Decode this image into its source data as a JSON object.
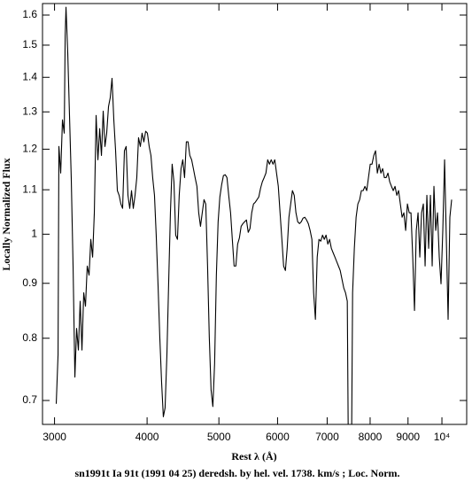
{
  "chart_data": {
    "type": "line",
    "x_label": "Rest λ (Å)",
    "y_label": "Locally Normalized Flux",
    "caption": "sn1991t Ia 91t (1991 04 25) deredsh. by hel. vel.  1738. km/s ;  Loc. Norm.",
    "xscale": "log",
    "yscale": "log",
    "xlim": [
      2890,
      10800
    ],
    "ylim": [
      0.665,
      1.64
    ],
    "xticks": [
      3000,
      4000,
      5000,
      6000,
      7000,
      8000,
      9000,
      {
        "value": 10000,
        "label": "10⁴"
      }
    ],
    "yticks": [
      0.7,
      0.8,
      0.9,
      1,
      1.1,
      1.2,
      1.3,
      1.4,
      1.5,
      1.6
    ],
    "series": [
      {
        "color": "#000000",
        "x": [
          3016,
          3033,
          3041,
          3058,
          3075,
          3092,
          3101,
          3109,
          3126,
          3143,
          3160,
          3178,
          3196,
          3213,
          3231,
          3249,
          3267,
          3285,
          3303,
          3321,
          3340,
          3358,
          3377,
          3395,
          3414,
          3433,
          3452,
          3471,
          3490,
          3509,
          3528,
          3548,
          3567,
          3587,
          3607,
          3627,
          3647,
          3667,
          3687,
          3707,
          3728,
          3748,
          3769,
          3790,
          3811,
          3832,
          3853,
          3874,
          3895,
          3917,
          3938,
          3960,
          3982,
          4004,
          4026,
          4048,
          4070,
          4093,
          4115,
          4138,
          4161,
          4184,
          4207,
          4230,
          4254,
          4277,
          4301,
          4324,
          4348,
          4372,
          4396,
          4420,
          4445,
          4469,
          4494,
          4519,
          4543,
          4568,
          4594,
          4619,
          4644,
          4670,
          4696,
          4722,
          4748,
          4774,
          4800,
          4827,
          4853,
          4880,
          4907,
          4934,
          4961,
          4988,
          5015,
          5043,
          5071,
          5099,
          5127,
          5155,
          5185,
          5213,
          5242,
          5271,
          5300,
          5329,
          5358,
          5388,
          5417,
          5447,
          5477,
          5507,
          5537,
          5568,
          5599,
          5629,
          5660,
          5692,
          5723,
          5755,
          5787,
          5819,
          5851,
          5883,
          5916,
          5948,
          5981,
          6014,
          6047,
          6081,
          6114,
          6148,
          6182,
          6216,
          6250,
          6284,
          6319,
          6353,
          6388,
          6424,
          6459,
          6494,
          6530,
          6566,
          6602,
          6639,
          6676,
          6712,
          6749,
          6787,
          6824,
          6862,
          6900,
          6938,
          6976,
          7015,
          7053,
          7092,
          7131,
          7171,
          7210,
          7250,
          7290,
          7330,
          7371,
          7411,
          7452,
          7472,
          7555,
          7576,
          7617,
          7659,
          7701,
          7744,
          7786,
          7829,
          7872,
          7916,
          7959,
          8003,
          8047,
          8092,
          8136,
          8181,
          8226,
          8272,
          8317,
          8363,
          8409,
          8456,
          8502,
          8549,
          8596,
          8644,
          8692,
          8740,
          8788,
          8836,
          8885,
          8934,
          8983,
          9033,
          9083,
          9133,
          9183,
          9234,
          9285,
          9336,
          9387,
          9439,
          9491,
          9543,
          9596,
          9649,
          9702,
          9755,
          9809,
          9863,
          9918,
          9972,
          10027,
          10083,
          10138,
          10194,
          10250,
          10307
        ],
        "values": [
          0.695,
          0.772,
          1.207,
          1.14,
          1.278,
          1.242,
          1.531,
          1.627,
          1.474,
          1.29,
          1.129,
          0.934,
          0.736,
          0.817,
          0.78,
          0.866,
          0.78,
          0.882,
          0.857,
          0.934,
          0.916,
          0.989,
          0.952,
          1.047,
          1.29,
          1.173,
          1.254,
          1.184,
          1.302,
          1.207,
          1.242,
          1.315,
          1.34,
          1.397,
          1.278,
          1.196,
          1.098,
          1.087,
          1.067,
          1.057,
          1.196,
          1.207,
          1.087,
          1.057,
          1.098,
          1.057,
          1.087,
          1.129,
          1.23,
          1.207,
          1.242,
          1.219,
          1.247,
          1.242,
          1.207,
          1.184,
          1.129,
          1.087,
          0.998,
          0.899,
          0.802,
          0.729,
          0.676,
          0.689,
          0.772,
          0.899,
          1.047,
          1.162,
          1.119,
          0.998,
          0.989,
          1.087,
          1.151,
          1.173,
          1.129,
          1.219,
          1.219,
          1.184,
          1.173,
          1.151,
          1.129,
          1.108,
          1.047,
          1.017,
          1.047,
          1.077,
          1.067,
          0.934,
          0.802,
          0.716,
          0.691,
          0.758,
          0.916,
          1.027,
          1.083,
          1.112,
          1.134,
          1.136,
          1.129,
          1.087,
          1.047,
          0.989,
          0.934,
          0.934,
          0.979,
          0.992,
          1.017,
          1.023,
          1.027,
          1.031,
          1.004,
          1.012,
          1.047,
          1.067,
          1.071,
          1.077,
          1.083,
          1.104,
          1.119,
          1.129,
          1.14,
          1.173,
          1.162,
          1.173,
          1.162,
          1.173,
          1.14,
          1.108,
          1.047,
          0.989,
          0.934,
          0.925,
          0.97,
          1.037,
          1.067,
          1.098,
          1.087,
          1.047,
          1.027,
          1.023,
          1.027,
          1.035,
          1.037,
          1.031,
          1.023,
          1.008,
          0.989,
          0.882,
          0.833,
          0.952,
          0.989,
          0.985,
          0.998,
          0.989,
          0.998,
          0.979,
          0.989,
          0.97,
          0.961,
          0.952,
          0.943,
          0.934,
          0.925,
          0.908,
          0.891,
          0.882,
          0.866,
          0.665,
          0.665,
          0.882,
          0.97,
          1.037,
          1.067,
          1.077,
          1.098,
          1.098,
          1.108,
          1.098,
          1.129,
          1.162,
          1.162,
          1.184,
          1.196,
          1.14,
          1.162,
          1.14,
          1.151,
          1.129,
          1.129,
          1.14,
          1.119,
          1.108,
          1.098,
          1.108,
          1.087,
          1.098,
          1.067,
          1.037,
          1.047,
          1.008,
          1.067,
          1.047,
          1.047,
          0.952,
          0.849,
          1.008,
          1.047,
          0.952,
          1.047,
          1.067,
          0.934,
          1.087,
          0.97,
          1.087,
          0.934,
          1.108,
          1.008,
          1.047,
          0.952,
          0.899,
          1.008,
          1.173,
          0.989,
          0.833,
          1.037,
          1.077
        ]
      }
    ]
  }
}
